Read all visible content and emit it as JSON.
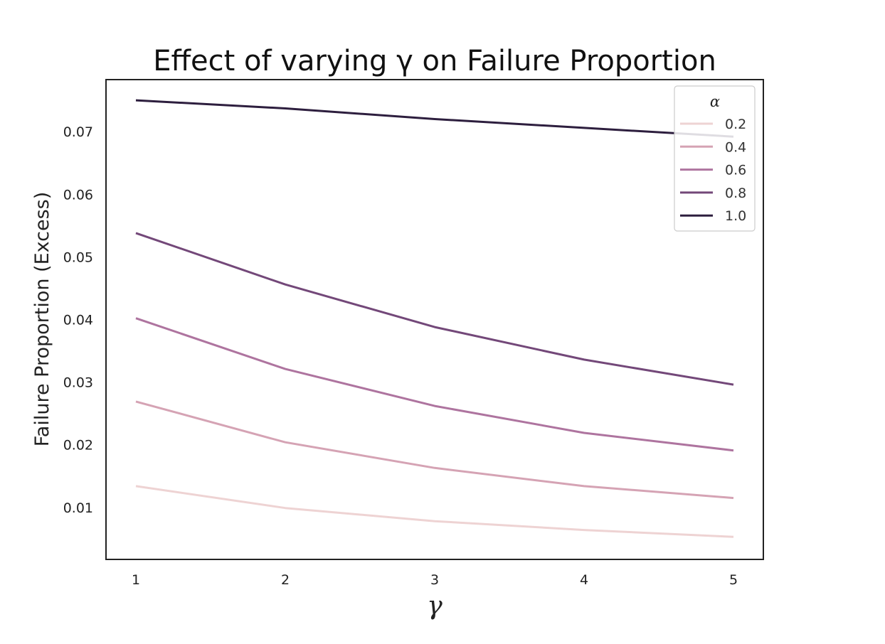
{
  "chart_data": {
    "type": "line",
    "title": "Effect of varying γ on Failure Proportion",
    "xlabel": "γ",
    "ylabel": "Failure Proportion (Excess)",
    "x": [
      1,
      2,
      3,
      4,
      5
    ],
    "x_tick_labels": [
      "1",
      "2",
      "3",
      "4",
      "5"
    ],
    "y_ticks": [
      0.01,
      0.02,
      0.03,
      0.04,
      0.05,
      0.06,
      0.07
    ],
    "y_tick_labels": [
      "0.01",
      "0.02",
      "0.03",
      "0.04",
      "0.05",
      "0.06",
      "0.07"
    ],
    "xlim": [
      0.8,
      5.2
    ],
    "ylim": [
      0.0017,
      0.0783
    ],
    "grid": false,
    "legend": {
      "title": "α",
      "placement": "top-right"
    },
    "series": [
      {
        "name": "0.2",
        "color": "#eed3d3",
        "values": [
          0.0134,
          0.0099,
          0.0078,
          0.0064,
          0.0053
        ]
      },
      {
        "name": "0.4",
        "color": "#d5a3b4",
        "values": [
          0.0269,
          0.0204,
          0.0163,
          0.0134,
          0.0115
        ]
      },
      {
        "name": "0.6",
        "color": "#ae749f",
        "values": [
          0.0402,
          0.0321,
          0.0262,
          0.0219,
          0.0191
        ]
      },
      {
        "name": "0.8",
        "color": "#734879",
        "values": [
          0.0538,
          0.0456,
          0.0388,
          0.0336,
          0.0296
        ]
      },
      {
        "name": "1.0",
        "color": "#2d1e3e",
        "values": [
          0.075,
          0.0737,
          0.072,
          0.0706,
          0.0692
        ]
      }
    ]
  }
}
